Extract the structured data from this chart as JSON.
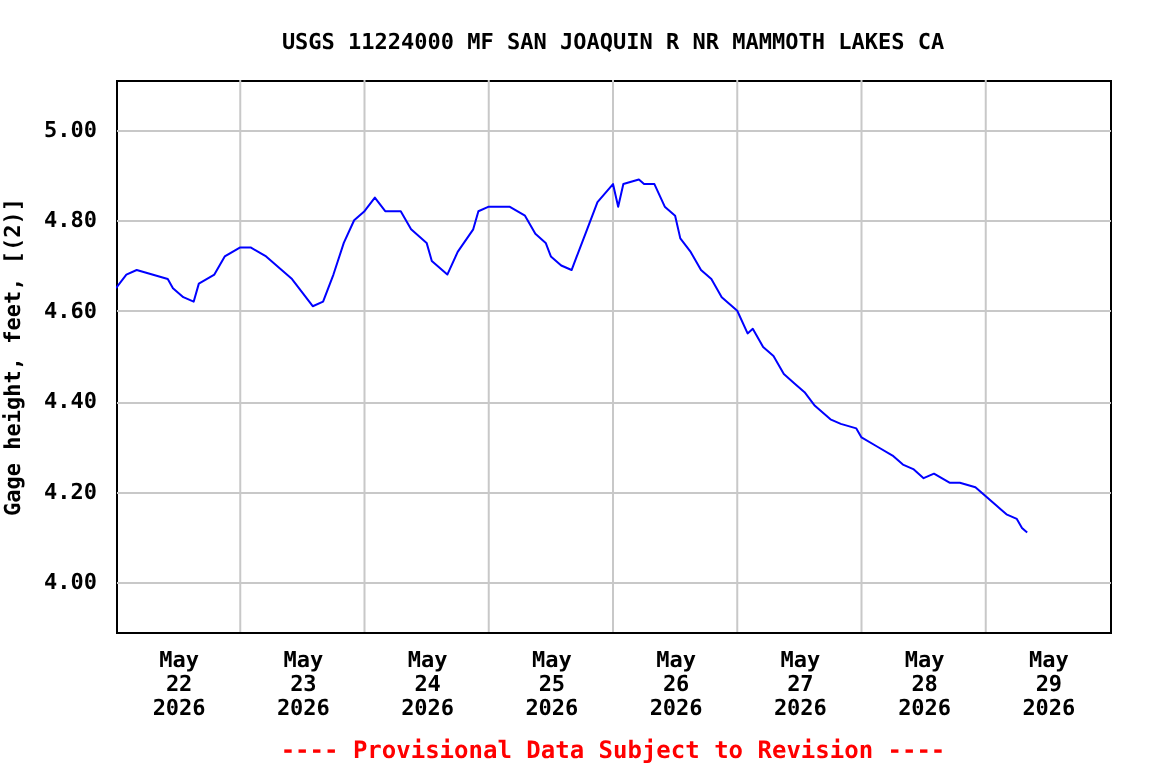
{
  "chart_data": {
    "type": "line",
    "title": "USGS 11224000 MF SAN JOAQUIN R NR MAMMOTH LAKES CA",
    "ylabel": "Gage height, feet, [(2)]",
    "annotations": [
      "---- Provisional Data Subject to Revision ----"
    ],
    "xlim": [
      "2026-05-22T00:00",
      "2026-05-30T00:00"
    ],
    "xticks": [
      {
        "value": "2026-05-22T12:00",
        "label": "May 22 2026"
      },
      {
        "value": "2026-05-23T12:00",
        "label": "May 23 2026"
      },
      {
        "value": "2026-05-24T12:00",
        "label": "May 24 2026"
      },
      {
        "value": "2026-05-25T12:00",
        "label": "May 25 2026"
      },
      {
        "value": "2026-05-26T12:00",
        "label": "May 26 2026"
      },
      {
        "value": "2026-05-27T12:00",
        "label": "May 27 2026"
      },
      {
        "value": "2026-05-28T12:00",
        "label": "May 28 2026"
      },
      {
        "value": "2026-05-29T12:00",
        "label": "May 29 2026"
      },
      {
        "value": "2026-05-23T00:00",
        "label": null
      },
      {
        "value": "2026-05-24T00:00",
        "label": null
      },
      {
        "value": "2026-05-25T00:00",
        "label": null
      },
      {
        "value": "2026-05-26T00:00",
        "label": null
      },
      {
        "value": "2026-05-27T00:00",
        "label": null
      },
      {
        "value": "2026-05-28T00:00",
        "label": null
      },
      {
        "value": "2026-05-29T00:00",
        "label": null
      }
    ],
    "ylim": [
      3.89,
      5.11
    ],
    "yticks": [
      {
        "value": 4,
        "label": "4.00"
      },
      {
        "value": 4.2,
        "label": "4.20"
      },
      {
        "value": 4.4,
        "label": "4.40"
      },
      {
        "value": 4.6,
        "label": "4.60"
      },
      {
        "value": 4.8,
        "label": "4.80"
      },
      {
        "value": 5,
        "label": "5.00"
      }
    ],
    "grid": true,
    "series": [
      {
        "color": "#0000ff",
        "x": [
          "2026-05-22T00:00",
          "2026-05-22T02:00",
          "2026-05-22T04:00",
          "2026-05-22T07:00",
          "2026-05-22T10:00",
          "2026-05-22T11:00",
          "2026-05-22T13:00",
          "2026-05-22T15:00",
          "2026-05-22T16:00",
          "2026-05-22T19:00",
          "2026-05-22T21:00",
          "2026-05-23T00:00",
          "2026-05-23T02:00",
          "2026-05-23T05:00",
          "2026-05-23T08:00",
          "2026-05-23T10:00",
          "2026-05-23T12:00",
          "2026-05-23T14:00",
          "2026-05-23T16:00",
          "2026-05-23T18:00",
          "2026-05-23T20:00",
          "2026-05-23T22:00",
          "2026-05-24T00:00",
          "2026-05-24T02:00",
          "2026-05-24T04:00",
          "2026-05-24T07:00",
          "2026-05-24T09:00",
          "2026-05-24T12:00",
          "2026-05-24T13:00",
          "2026-05-24T15:00",
          "2026-05-24T16:00",
          "2026-05-24T18:00",
          "2026-05-24T21:00",
          "2026-05-24T22:00",
          "2026-05-25T00:00",
          "2026-05-25T04:00",
          "2026-05-25T07:00",
          "2026-05-25T09:00",
          "2026-05-25T11:00",
          "2026-05-25T12:00",
          "2026-05-25T14:00",
          "2026-05-25T16:00",
          "2026-05-25T17:00",
          "2026-05-25T19:00",
          "2026-05-25T21:00",
          "2026-05-26T00:00",
          "2026-05-26T01:00",
          "2026-05-26T02:00",
          "2026-05-26T05:00",
          "2026-05-26T06:00",
          "2026-05-26T08:00",
          "2026-05-26T10:00",
          "2026-05-26T12:00",
          "2026-05-26T13:00",
          "2026-05-26T15:00",
          "2026-05-26T17:00",
          "2026-05-26T19:00",
          "2026-05-26T21:00",
          "2026-05-27T00:00",
          "2026-05-27T02:00",
          "2026-05-27T03:00",
          "2026-05-27T05:00",
          "2026-05-27T07:00",
          "2026-05-27T09:00",
          "2026-05-27T11:00",
          "2026-05-27T13:00",
          "2026-05-27T15:00",
          "2026-05-27T18:00",
          "2026-05-27T20:00",
          "2026-05-27T23:00",
          "2026-05-28T00:00",
          "2026-05-28T03:00",
          "2026-05-28T06:00",
          "2026-05-28T08:00",
          "2026-05-28T10:00",
          "2026-05-28T12:00",
          "2026-05-28T14:00",
          "2026-05-28T17:00",
          "2026-05-28T19:00",
          "2026-05-28T22:00",
          "2026-05-29T00:00",
          "2026-05-29T02:00",
          "2026-05-29T04:00",
          "2026-05-29T06:00",
          "2026-05-29T07:00",
          "2026-05-29T08:00"
        ],
        "values": [
          4.65,
          4.68,
          4.69,
          4.68,
          4.67,
          4.65,
          4.63,
          4.62,
          4.66,
          4.68,
          4.72,
          4.74,
          4.74,
          4.72,
          4.69,
          4.67,
          4.64,
          4.61,
          4.62,
          4.68,
          4.75,
          4.8,
          4.82,
          4.85,
          4.82,
          4.82,
          4.78,
          4.75,
          4.71,
          4.69,
          4.68,
          4.73,
          4.78,
          4.82,
          4.83,
          4.83,
          4.81,
          4.77,
          4.75,
          4.72,
          4.7,
          4.69,
          4.72,
          4.78,
          4.84,
          4.88,
          4.83,
          4.88,
          4.89,
          4.88,
          4.88,
          4.83,
          4.81,
          4.76,
          4.73,
          4.69,
          4.67,
          4.63,
          4.6,
          4.55,
          4.56,
          4.52,
          4.5,
          4.46,
          4.44,
          4.42,
          4.39,
          4.36,
          4.35,
          4.34,
          4.32,
          4.3,
          4.28,
          4.26,
          4.25,
          4.23,
          4.24,
          4.22,
          4.22,
          4.21,
          4.19,
          4.17,
          4.15,
          4.14,
          4.12,
          4.11
        ]
      }
    ]
  }
}
